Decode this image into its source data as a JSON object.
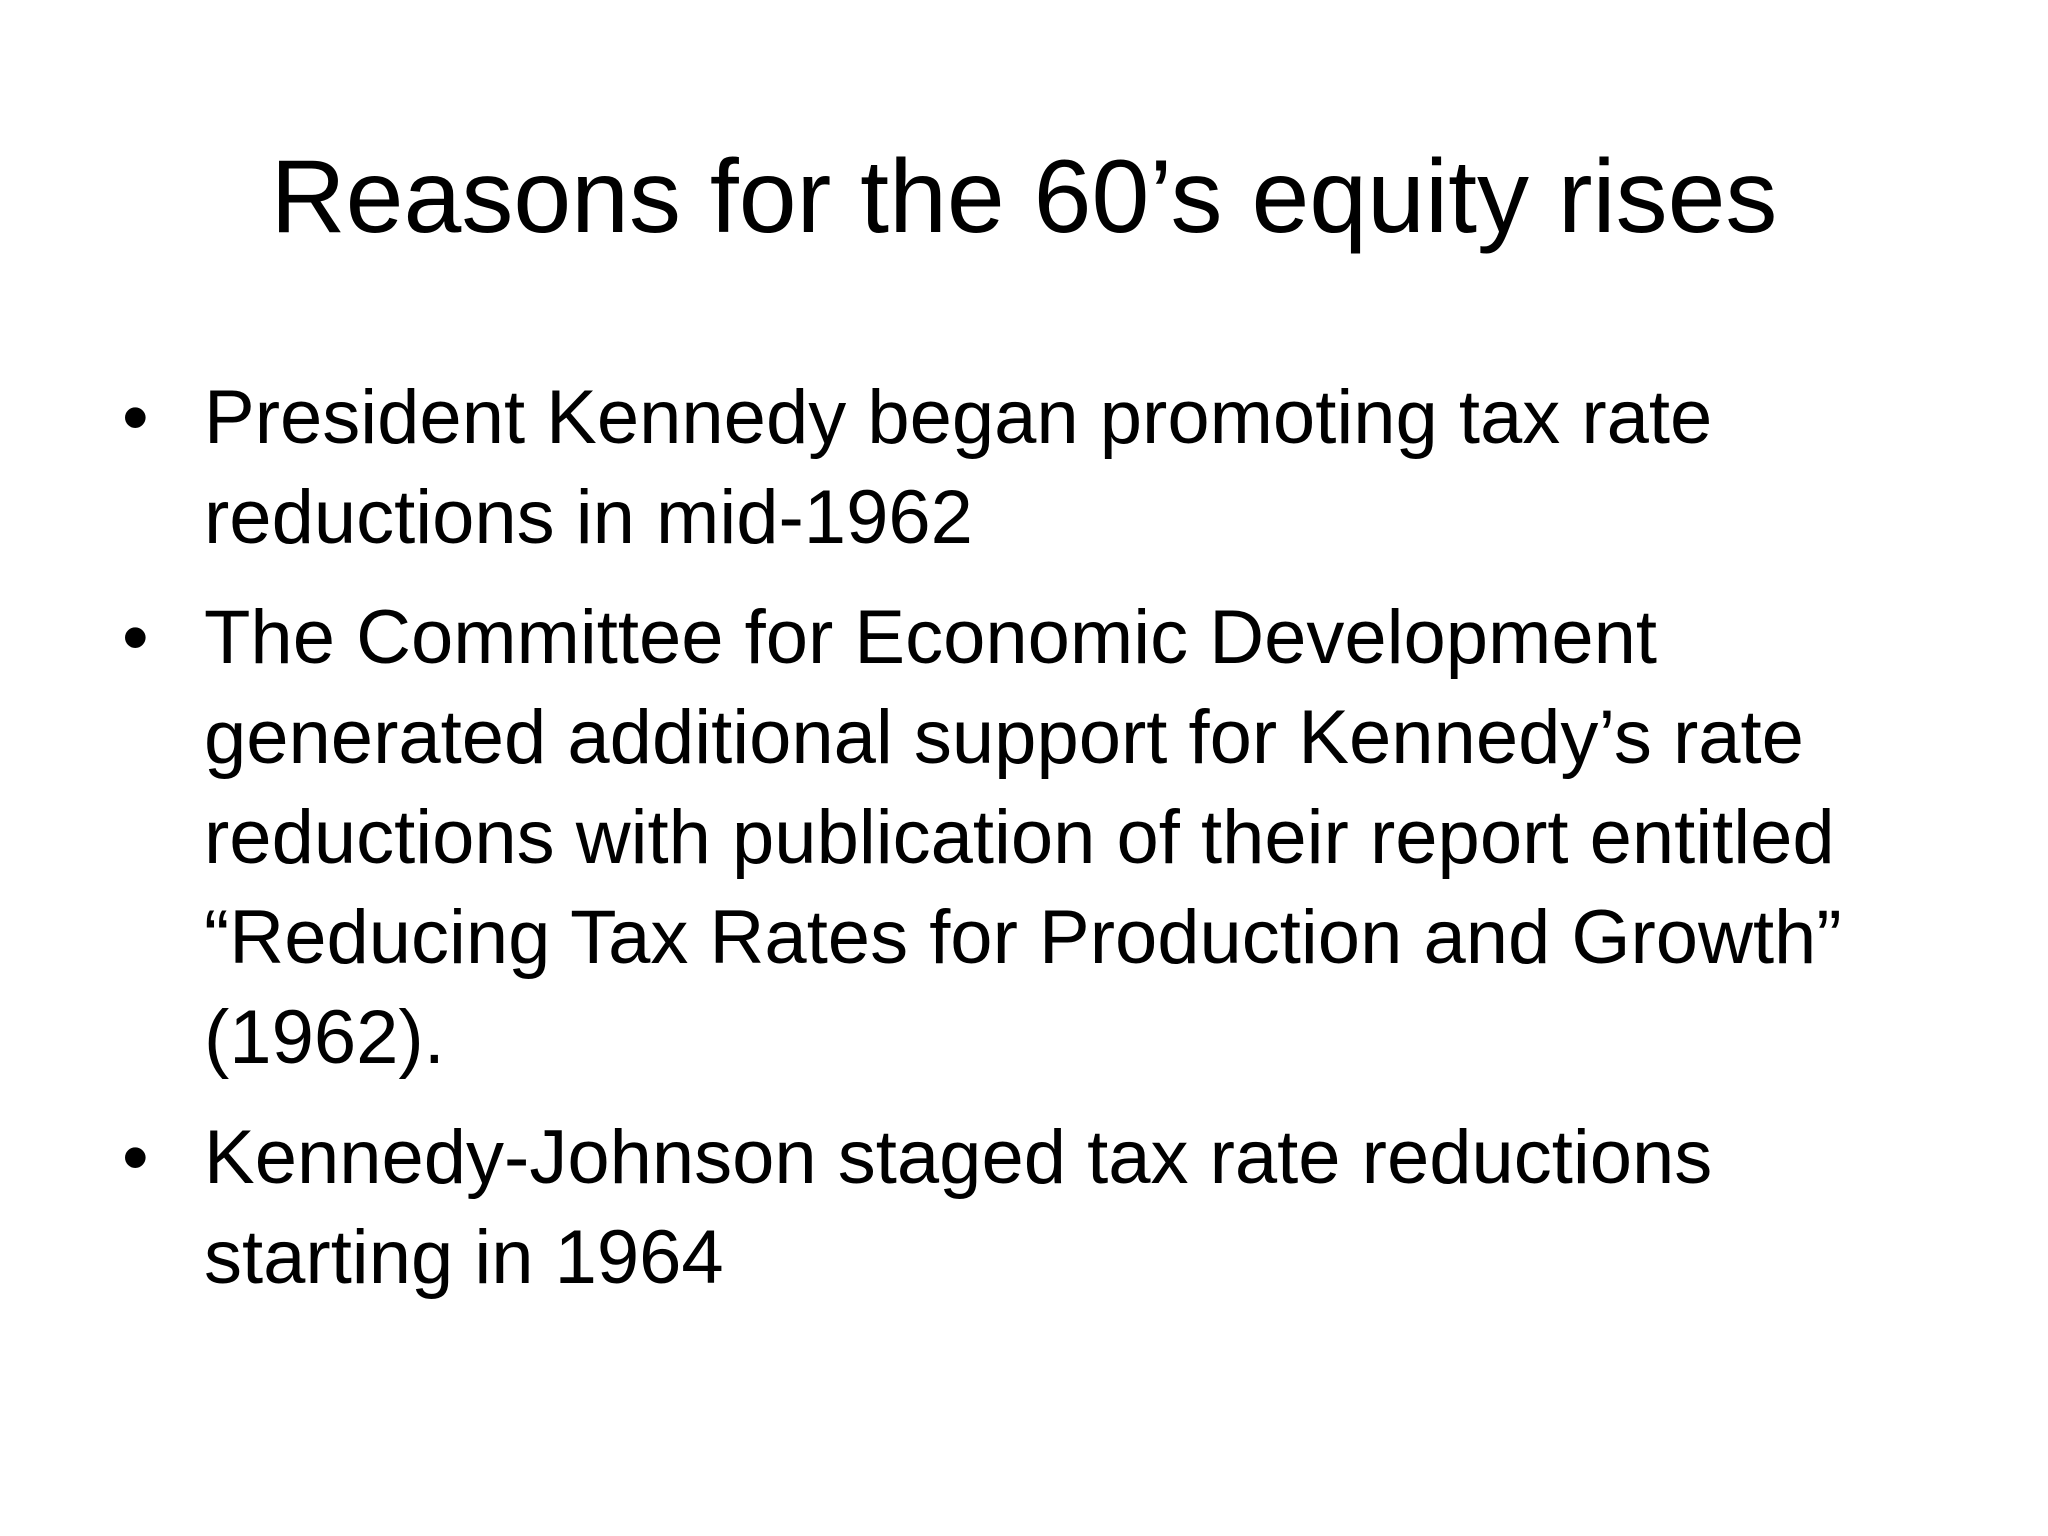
{
  "slide": {
    "title": "Reasons for the 60’s equity rises",
    "bullet_symbol": "•",
    "bullets": [
      "President Kennedy began promoting tax rate reductions in mid-1962",
      "The Committee for Economic Development generated additional support for Kennedy’s rate reductions with publication of their report entitled “Reducing Tax Rates for Production and Growth” (1962).",
      "Kennedy-Johnson staged tax rate reductions starting in 1964"
    ]
  }
}
